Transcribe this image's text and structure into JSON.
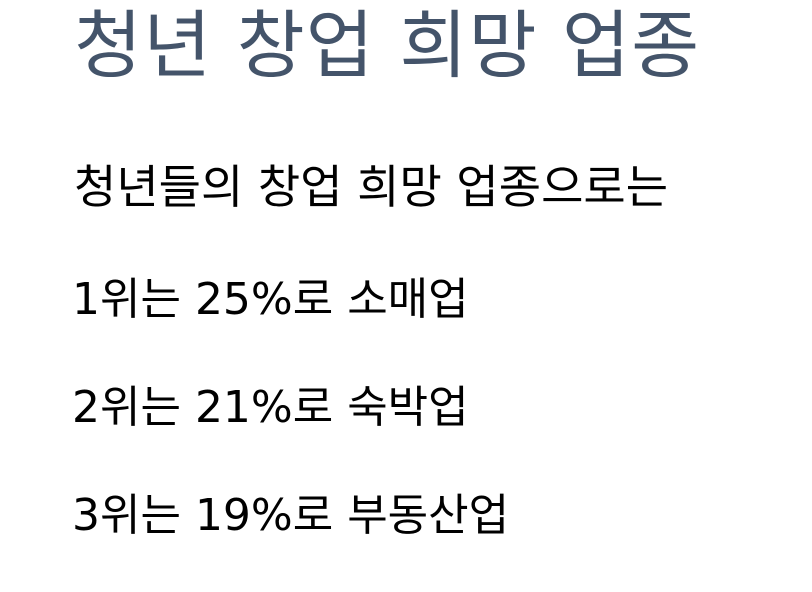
{
  "slide": {
    "title": "청년 창업 희망 업종",
    "title_color": "#44546a",
    "intro": "청년들의 창업 희망 업종으로는",
    "ranks": [
      {
        "text": "1위는 25%로 소매업"
      },
      {
        "text": "2위는 21%로 숙박업"
      },
      {
        "text": "3위는 19%로 부동산업"
      }
    ]
  }
}
